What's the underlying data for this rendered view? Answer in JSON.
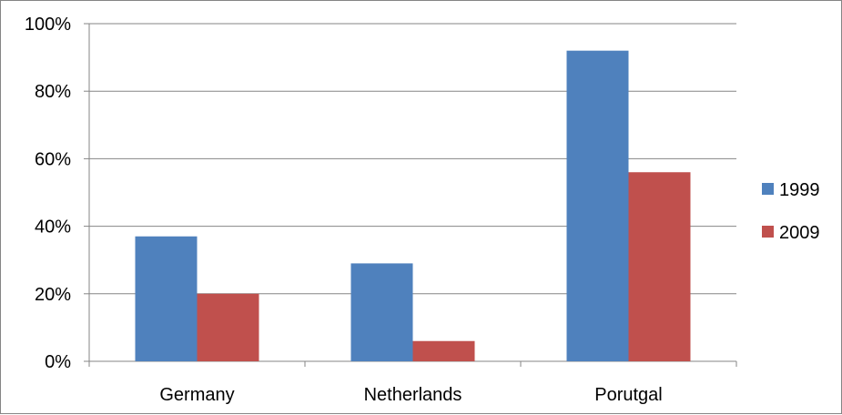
{
  "chart_data": {
    "type": "bar",
    "categories": [
      "Germany",
      "Netherlands",
      "Porutgal"
    ],
    "series": [
      {
        "name": "1999",
        "values": [
          37,
          29,
          92
        ],
        "color": "#4F81BD"
      },
      {
        "name": "2009",
        "values": [
          20,
          6,
          56
        ],
        "color": "#C0504D"
      }
    ],
    "ylim": [
      0,
      100
    ],
    "yticks": [
      0,
      20,
      40,
      60,
      80,
      100
    ],
    "ytick_labels": [
      "0%",
      "20%",
      "40%",
      "60%",
      "80%",
      "100%"
    ],
    "grid": true,
    "legend": "right",
    "title": "",
    "xlabel": "",
    "ylabel": ""
  }
}
